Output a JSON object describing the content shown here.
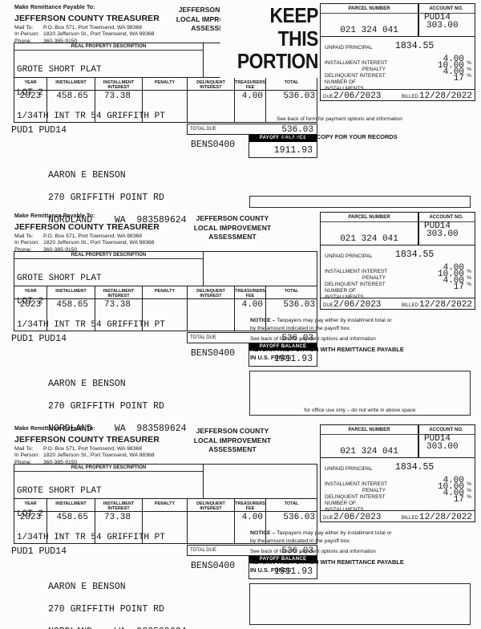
{
  "colors": {
    "paper": "#fcfcfa",
    "ink": "#161616",
    "payoff_bar": "#000000"
  },
  "remit": {
    "payable_to": "Make Remittance Payable To:",
    "treasurer": "JEFFERSON COUNTY TREASURER",
    "mail_to_label": "Mail To:",
    "mail_to": "P.O. Box 571, Port Townsend, WA 98368",
    "in_person_label": "In Person:",
    "in_person": "1820 Jefferson St., Port Townsend, WA 98368",
    "phone_label": "Phone:",
    "phone": "360-385-9150"
  },
  "heading": {
    "line1": "JEFFERSON COUNTY",
    "line2": "LOCAL IMPROVEMENT",
    "line3": "ASSESSMENT"
  },
  "keep": {
    "line1": "KEEP",
    "line2": "THIS",
    "line3": "PORTION"
  },
  "parcel_box": {
    "parcel_number_label": "PARCEL NUMBER",
    "account_no_label": "ACCOUNT NO.",
    "parcel_number": "021 324 041",
    "account_line1": "PUD14",
    "account_line2": "303.00",
    "unpaid_principal_label": "UNPAID PRINCIPAL",
    "unpaid_principal": "1834.55",
    "installment_interest_label": "INSTALLMENT INTEREST",
    "penalty_label": "PENALTY",
    "delinquent_interest_label": "DELINQUENT INTEREST",
    "num_installments_label": "NUMBER OF INSTALLMENTS",
    "installment_interest": "4.00",
    "penalty": "10.00",
    "delinquent_interest": "4.00",
    "num_installments": "17",
    "percent": "%",
    "due_label": "DUE",
    "due_date": "2/06/2023",
    "billed_label": "BILLED",
    "billed_date": "12/28/2022"
  },
  "property": {
    "header": "REAL PROPERTY DESCRIPTION",
    "line1": "GROTE SHORT PLAT",
    "line2": "LOT 2",
    "line3": "1/34TH INT TR 54 GRIFFITH PT"
  },
  "table": {
    "headers": [
      "YEAR",
      "INSTALLMENT",
      "INSTALLMENT INTEREST",
      "PENALTY",
      "DELINQUENT INTEREST",
      "TREASURERS FEE",
      "TOTAL"
    ],
    "row": {
      "year": "2023",
      "installment": "458.65",
      "installment_interest": "73.38",
      "penalty": "",
      "delinquent_interest": "",
      "treasurers_fee": "4.00",
      "total": "536.03"
    }
  },
  "totals": {
    "fund_codes": "PUD1 PUD14",
    "total_due_label": "TOTAL DUE",
    "total_due": "536.03",
    "payoff_label": "PAYOFF BALANCE",
    "payoff_balance": "1911.93",
    "account_code": "BENS0400"
  },
  "mailing": {
    "name": "AARON E BENSON",
    "address1": "270 GRIFFITH POINT RD",
    "address2": "NORDLAND    WA  983589624"
  },
  "notes": {
    "see_back": "See back of form for payment options and information",
    "retain": "RETAIN THIS COPY FOR YOUR RECORDS",
    "notice_label": "NOTICE –",
    "notice_line1": " Taxpayers may pay either by installment total or",
    "notice_line2": "by the amount indicated in the payoff box.",
    "return_line1": "RETURN THIS PORTION WITH REMITTANCE PAYABLE",
    "return_line2": "IN U.S. FUNDS",
    "office_use": "for office use only – do not write in above space"
  }
}
